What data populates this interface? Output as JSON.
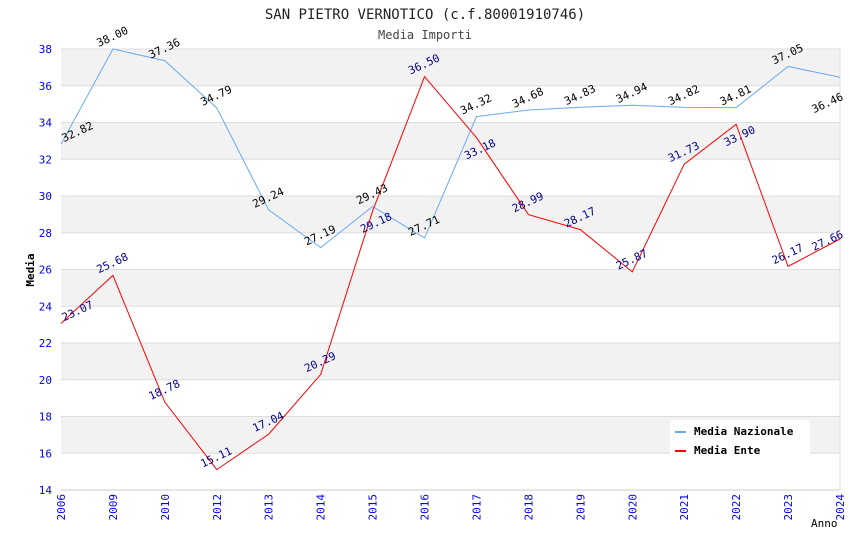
{
  "chart_data": {
    "type": "line",
    "title": "SAN PIETRO VERNOTICO (c.f.80001910746)",
    "subtitle": "Media Importi",
    "xlabel": "Anno",
    "ylabel": "Media",
    "ylim": [
      14,
      38
    ],
    "yticks": [
      "14",
      "16",
      "18",
      "20",
      "22",
      "24",
      "26",
      "28",
      "30",
      "32",
      "34",
      "36",
      "38"
    ],
    "categories": [
      "2006",
      "2009",
      "2010",
      "2012",
      "2013",
      "2014",
      "2015",
      "2016",
      "2017",
      "2018",
      "2019",
      "2020",
      "2021",
      "2022",
      "2023",
      "2024"
    ],
    "legend_position": "top-right",
    "series": [
      {
        "name": "Media Nazionale",
        "color": "#6aaaf0",
        "label_color": "#000000",
        "values": [
          32.82,
          38.0,
          37.36,
          34.79,
          29.24,
          27.19,
          29.43,
          27.71,
          34.32,
          34.68,
          34.83,
          34.94,
          34.82,
          34.81,
          37.05,
          36.46
        ],
        "labels": [
          "32.82",
          "38.00",
          "37.36",
          "34.79",
          "29.24",
          "27.19",
          "29.43",
          "27.71",
          "34.32",
          "34.68",
          "34.83",
          "34.94",
          "34.82",
          "34.81",
          "37.05",
          "36.46"
        ]
      },
      {
        "name": "Media Ente",
        "color": "#ff0000",
        "label_color": "#00008b",
        "values": [
          23.07,
          25.68,
          18.78,
          15.11,
          17.04,
          20.29,
          29.18,
          36.5,
          33.18,
          28.99,
          28.17,
          25.87,
          31.73,
          33.9,
          26.17,
          27.66
        ],
        "labels": [
          "23.07",
          "25.68",
          "18.78",
          "15.11",
          "17.04",
          "20.29",
          "29.18",
          "36.50",
          "33.18",
          "28.99",
          "28.17",
          "25.87",
          "31.73",
          "33.90",
          "26.17",
          "27.66"
        ]
      }
    ]
  }
}
